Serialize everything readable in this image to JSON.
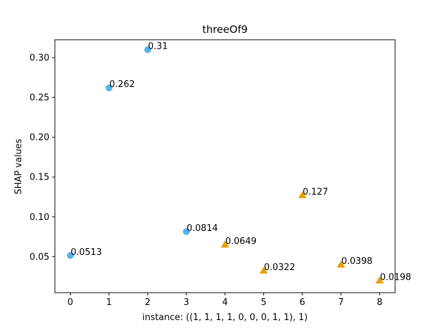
{
  "chart_data": {
    "type": "scatter",
    "title": "threeOf9",
    "xlabel": "instance: ((1, 1, 1, 1, 0, 0, 0, 1, 1), 1)",
    "ylabel": "SHAP values",
    "xlim": [
      -0.4,
      8.4
    ],
    "ylim": [
      0.0046,
      0.3225
    ],
    "xticks": [
      0,
      1,
      2,
      3,
      4,
      5,
      6,
      7,
      8
    ],
    "yticks": [
      0.05,
      0.1,
      0.15,
      0.2,
      0.25,
      0.3
    ],
    "ytick_labels": [
      "0.05",
      "0.10",
      "0.15",
      "0.20",
      "0.25",
      "0.30"
    ],
    "grid": false,
    "series": [
      {
        "marker": "circle",
        "color": "#56B4E9",
        "points": [
          {
            "x": 0,
            "y": 0.0513,
            "label": "0.0513"
          },
          {
            "x": 1,
            "y": 0.262,
            "label": "0.262"
          },
          {
            "x": 2,
            "y": 0.31,
            "label": "0.31"
          },
          {
            "x": 3,
            "y": 0.0814,
            "label": "0.0814"
          }
        ]
      },
      {
        "marker": "triangle",
        "color": "#E69F00",
        "points": [
          {
            "x": 4,
            "y": 0.0649,
            "label": "0.0649"
          },
          {
            "x": 5,
            "y": 0.0322,
            "label": "0.0322"
          },
          {
            "x": 6,
            "y": 0.127,
            "label": "0.127"
          },
          {
            "x": 7,
            "y": 0.0398,
            "label": "0.0398"
          },
          {
            "x": 8,
            "y": 0.0198,
            "label": "0.0198"
          }
        ]
      }
    ]
  }
}
